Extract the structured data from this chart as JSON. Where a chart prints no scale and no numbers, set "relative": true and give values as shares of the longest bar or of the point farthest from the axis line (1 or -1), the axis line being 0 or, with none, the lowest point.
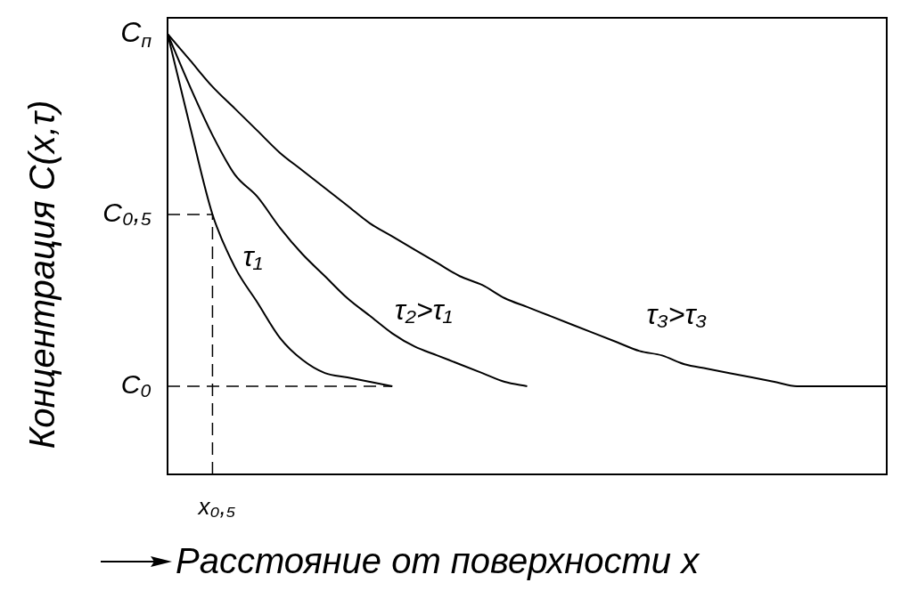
{
  "chart_data": {
    "type": "line",
    "relative": true,
    "xlabel": "Расстояние от поверхности x",
    "ylabel": "Концентрация C(x,τ)",
    "categories": [
      null,
      null,
      null,
      null,
      null,
      null,
      null,
      null,
      null,
      null,
      null,
      null,
      null,
      null,
      null,
      null,
      null,
      null,
      null,
      null,
      null,
      null,
      null,
      null,
      null,
      null,
      null,
      null,
      null,
      null,
      null,
      null,
      null
    ],
    "series": [
      {
        "name": "τ₁",
        "color": "#000000",
        "values": [
          1,
          0.79,
          0.59,
          0.47,
          0.39,
          0.31,
          0.26,
          0.23,
          0.22,
          0.21,
          0.2,
          null,
          null,
          null,
          null,
          null,
          null,
          null,
          null,
          null,
          null,
          null,
          null,
          null,
          null,
          null,
          null,
          null,
          null,
          null,
          null,
          null,
          null
        ]
      },
      {
        "name": "τ₂>τ₁",
        "color": "#000000",
        "values": [
          1,
          0.88,
          0.77,
          0.68,
          0.63,
          0.56,
          0.5,
          0.45,
          0.4,
          0.36,
          0.32,
          0.29,
          0.27,
          0.25,
          0.23,
          0.21,
          0.2,
          null,
          null,
          null,
          null,
          null,
          null,
          null,
          null,
          null,
          null,
          null,
          null,
          null,
          null,
          null,
          null
        ]
      },
      {
        "name": "τ₃>τ₃",
        "color": "#000000",
        "values": [
          1,
          0.94,
          0.88,
          0.83,
          0.78,
          0.73,
          0.69,
          0.65,
          0.61,
          0.57,
          0.54,
          0.51,
          0.48,
          0.45,
          0.43,
          0.4,
          0.38,
          0.36,
          0.34,
          0.32,
          0.3,
          0.28,
          0.27,
          0.25,
          0.24,
          0.23,
          0.22,
          0.21,
          0.2,
          0.2,
          0.2,
          0.2,
          0.2
        ]
      }
    ],
    "ref_lines": [
      {
        "axis": "y",
        "value": 0.59,
        "label": "C₀,₅",
        "line_style": "dashed"
      },
      {
        "axis": "y",
        "value": 0.2,
        "label": "C₀",
        "line_style": "dashed"
      }
    ],
    "annotations": [
      "C$_{п}$",
      "x₀,₅"
    ],
    "grid": false,
    "legend": false,
    "marker": "none",
    "line_style": "solid"
  }
}
